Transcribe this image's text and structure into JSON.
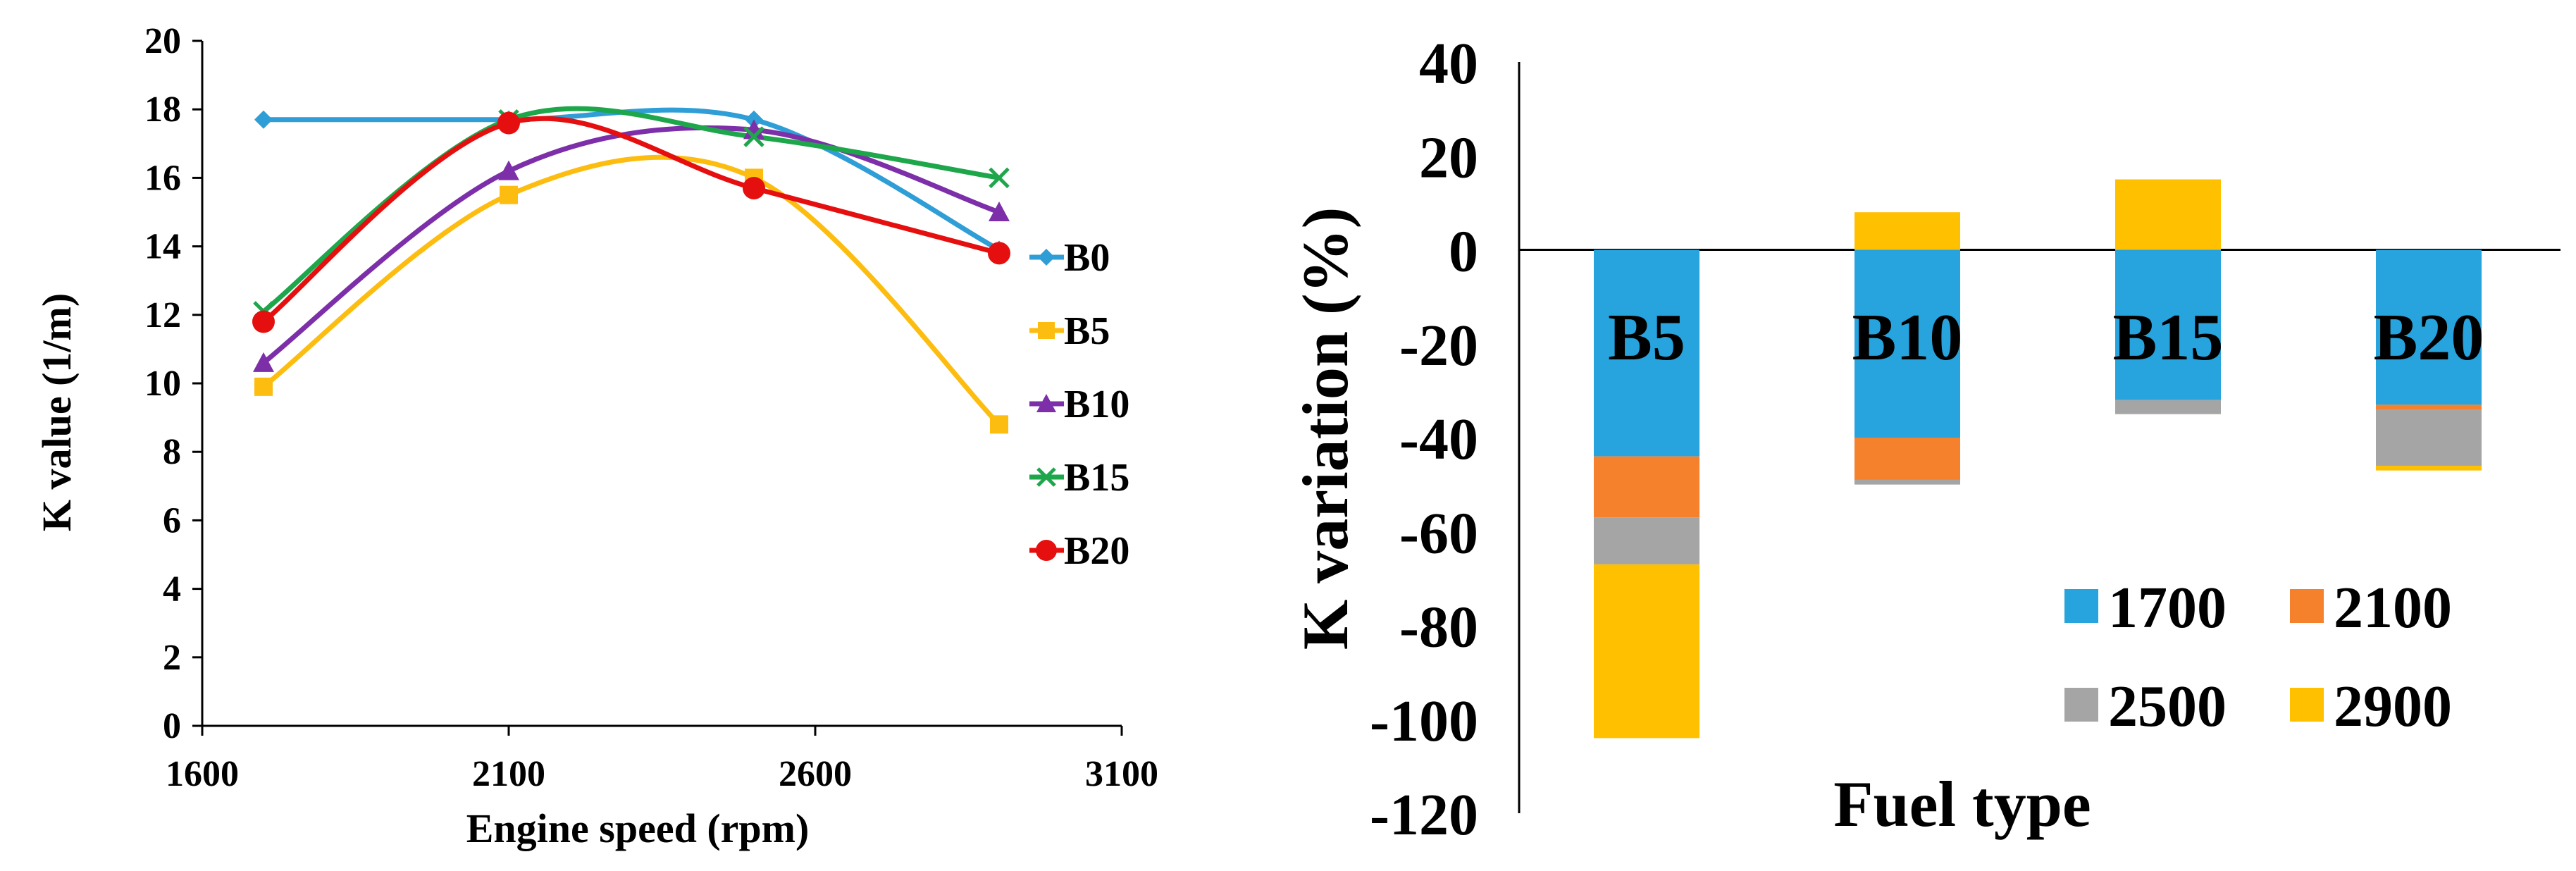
{
  "chart_data": [
    {
      "type": "line",
      "xlabel": "Engine speed (rpm)",
      "ylabel": "K value (1/m)",
      "xlim": [
        1600,
        3100
      ],
      "ylim": [
        0,
        20
      ],
      "xticks": [
        1600,
        2100,
        2600,
        3100
      ],
      "yticks": [
        0,
        2,
        4,
        6,
        8,
        10,
        12,
        14,
        16,
        18,
        20
      ],
      "x": [
        1700,
        2100,
        2500,
        2900
      ],
      "grid": false,
      "legend": "right",
      "series": [
        {
          "name": "B0",
          "marker": "diamond",
          "color": "#2f9ed6",
          "values": [
            17.7,
            17.7,
            17.7,
            13.9
          ]
        },
        {
          "name": "B5",
          "marker": "square",
          "color": "#fdbd10",
          "values": [
            9.9,
            15.5,
            16.0,
            8.8
          ]
        },
        {
          "name": "B10",
          "marker": "triangle",
          "color": "#7c2fa8",
          "values": [
            10.6,
            16.2,
            17.4,
            15.0
          ]
        },
        {
          "name": "B15",
          "marker": "x",
          "color": "#1ea64b",
          "values": [
            12.1,
            17.7,
            17.2,
            16.0
          ]
        },
        {
          "name": "B20",
          "marker": "circle",
          "color": "#e60f0f",
          "values": [
            11.8,
            17.6,
            15.7,
            13.8
          ]
        }
      ]
    },
    {
      "type": "bar",
      "stacked": true,
      "xlabel": "Fuel type",
      "ylabel": "K variation (%)",
      "ylim": [
        -120,
        40
      ],
      "yticks": [
        -120,
        -100,
        -80,
        -60,
        -40,
        -20,
        0,
        20,
        40
      ],
      "categories": [
        "B5",
        "B10",
        "B15",
        "B20"
      ],
      "legend": "bottom-right",
      "series": [
        {
          "name": "1700",
          "color": "#27a3dd",
          "values": [
            -44,
            -40,
            -32,
            -33
          ]
        },
        {
          "name": "2100",
          "color": "#f5812d",
          "values": [
            -13,
            -9,
            0,
            -1
          ]
        },
        {
          "name": "2500",
          "color": "#a5a5a5",
          "values": [
            -10,
            -1,
            -3,
            -12
          ]
        },
        {
          "name": "2900",
          "color": "#ffc000",
          "values": [
            -37,
            8,
            15,
            -1
          ]
        }
      ]
    }
  ]
}
